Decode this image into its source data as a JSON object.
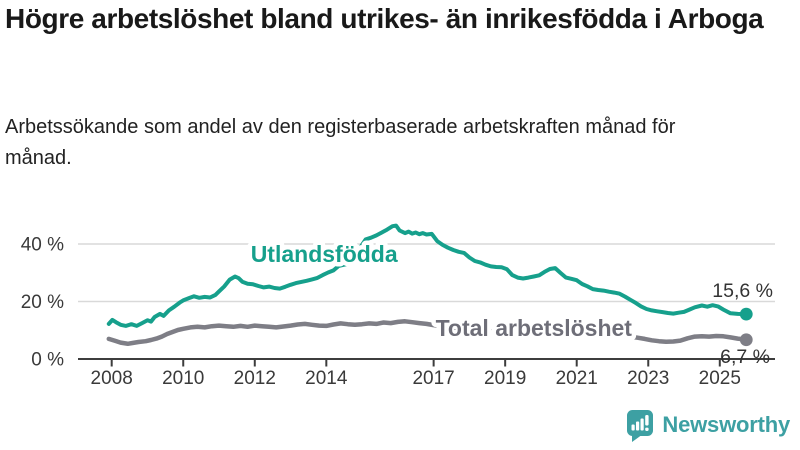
{
  "header": {
    "title": "Högre arbetslöshet bland utrikes- än inrikesfödda i Arboga",
    "subtitle": "Arbetssökande som andel av den registerbaserade arbetskraften månad för månad."
  },
  "footer": {
    "brand": "Newsworthy",
    "logo_icon": "bar-chart-speech-bubble-icon"
  },
  "colors": {
    "foreign_series": "#16a08c",
    "total_series": "#7e7e86",
    "total_label": "#6e6e78",
    "brand_teal": "#3da0a3",
    "axis_text": "#3a3a3a",
    "grid": "#d9d9d9",
    "axis_line": "#3d3d3d",
    "end_label_text": "#333333"
  },
  "chart_data": {
    "type": "line",
    "unit": "%",
    "grid": true,
    "legend_position": "inline-labels",
    "x_ticks": [
      2008,
      2010,
      2012,
      2014,
      2017,
      2019,
      2021,
      2023,
      2025
    ],
    "y_ticks": [
      {
        "value": 0,
        "label": "0 %"
      },
      {
        "value": 20,
        "label": "20 %"
      },
      {
        "value": 40,
        "label": "40 %"
      }
    ],
    "ylim": [
      0,
      48
    ],
    "xlim": [
      2007.9,
      2025.74
    ],
    "series": [
      {
        "name": "Utlandsfödda",
        "color": "#16a08c",
        "end_label": "15,6 %",
        "end_value": 15.6,
        "points": [
          [
            2007.92,
            12.2
          ],
          [
            2008.02,
            13.6
          ],
          [
            2008.12,
            12.8
          ],
          [
            2008.25,
            11.9
          ],
          [
            2008.4,
            11.5
          ],
          [
            2008.55,
            12.1
          ],
          [
            2008.7,
            11.5
          ],
          [
            2008.85,
            12.5
          ],
          [
            2009.0,
            13.5
          ],
          [
            2009.1,
            13.0
          ],
          [
            2009.2,
            14.6
          ],
          [
            2009.35,
            15.7
          ],
          [
            2009.45,
            15.0
          ],
          [
            2009.6,
            16.9
          ],
          [
            2009.75,
            18.2
          ],
          [
            2009.9,
            19.6
          ],
          [
            2010.0,
            20.4
          ],
          [
            2010.15,
            21.1
          ],
          [
            2010.3,
            21.8
          ],
          [
            2010.45,
            21.3
          ],
          [
            2010.6,
            21.6
          ],
          [
            2010.75,
            21.4
          ],
          [
            2010.9,
            22.3
          ],
          [
            2011.0,
            23.5
          ],
          [
            2011.15,
            25.3
          ],
          [
            2011.3,
            27.6
          ],
          [
            2011.45,
            28.7
          ],
          [
            2011.55,
            28.1
          ],
          [
            2011.65,
            26.9
          ],
          [
            2011.8,
            26.2
          ],
          [
            2011.95,
            26.0
          ],
          [
            2012.1,
            25.4
          ],
          [
            2012.25,
            24.9
          ],
          [
            2012.4,
            25.2
          ],
          [
            2012.55,
            24.7
          ],
          [
            2012.7,
            24.5
          ],
          [
            2012.85,
            25.1
          ],
          [
            2013.0,
            25.8
          ],
          [
            2013.15,
            26.4
          ],
          [
            2013.3,
            26.8
          ],
          [
            2013.45,
            27.2
          ],
          [
            2013.6,
            27.7
          ],
          [
            2013.75,
            28.2
          ],
          [
            2013.9,
            29.2
          ],
          [
            2014.05,
            30.1
          ],
          [
            2014.2,
            30.8
          ],
          [
            2014.35,
            32.4
          ],
          [
            2014.5,
            32.8
          ],
          [
            2014.65,
            33.3
          ],
          [
            2014.8,
            35.6
          ],
          [
            2014.95,
            38.8
          ],
          [
            2015.1,
            41.6
          ],
          [
            2015.25,
            42.2
          ],
          [
            2015.4,
            43.0
          ],
          [
            2015.55,
            44.0
          ],
          [
            2015.7,
            45.0
          ],
          [
            2015.85,
            46.2
          ],
          [
            2015.95,
            46.4
          ],
          [
            2016.05,
            44.7
          ],
          [
            2016.2,
            43.8
          ],
          [
            2016.3,
            44.3
          ],
          [
            2016.4,
            43.6
          ],
          [
            2016.5,
            44.0
          ],
          [
            2016.6,
            43.4
          ],
          [
            2016.7,
            43.8
          ],
          [
            2016.8,
            43.3
          ],
          [
            2016.95,
            43.5
          ],
          [
            2017.1,
            41.0
          ],
          [
            2017.25,
            39.7
          ],
          [
            2017.4,
            38.7
          ],
          [
            2017.55,
            37.9
          ],
          [
            2017.7,
            37.3
          ],
          [
            2017.85,
            36.9
          ],
          [
            2018.0,
            35.3
          ],
          [
            2018.15,
            34.1
          ],
          [
            2018.3,
            33.6
          ],
          [
            2018.45,
            32.8
          ],
          [
            2018.6,
            32.2
          ],
          [
            2018.75,
            32.0
          ],
          [
            2018.9,
            31.9
          ],
          [
            2019.05,
            31.2
          ],
          [
            2019.2,
            29.2
          ],
          [
            2019.35,
            28.3
          ],
          [
            2019.5,
            28.0
          ],
          [
            2019.65,
            28.3
          ],
          [
            2019.8,
            28.7
          ],
          [
            2019.95,
            29.1
          ],
          [
            2020.1,
            30.3
          ],
          [
            2020.25,
            31.3
          ],
          [
            2020.4,
            31.6
          ],
          [
            2020.55,
            29.9
          ],
          [
            2020.7,
            28.3
          ],
          [
            2020.85,
            27.9
          ],
          [
            2021.0,
            27.4
          ],
          [
            2021.15,
            26.1
          ],
          [
            2021.3,
            25.3
          ],
          [
            2021.45,
            24.3
          ],
          [
            2021.6,
            24.0
          ],
          [
            2021.75,
            23.8
          ],
          [
            2021.9,
            23.4
          ],
          [
            2022.05,
            23.1
          ],
          [
            2022.2,
            22.7
          ],
          [
            2022.35,
            21.7
          ],
          [
            2022.5,
            20.6
          ],
          [
            2022.65,
            19.5
          ],
          [
            2022.8,
            18.3
          ],
          [
            2022.95,
            17.4
          ],
          [
            2023.1,
            16.9
          ],
          [
            2023.25,
            16.6
          ],
          [
            2023.4,
            16.3
          ],
          [
            2023.55,
            16.0
          ],
          [
            2023.7,
            15.8
          ],
          [
            2023.85,
            16.1
          ],
          [
            2024.0,
            16.4
          ],
          [
            2024.15,
            17.2
          ],
          [
            2024.3,
            18.0
          ],
          [
            2024.5,
            18.6
          ],
          [
            2024.65,
            18.2
          ],
          [
            2024.8,
            18.7
          ],
          [
            2024.95,
            18.3
          ],
          [
            2025.1,
            17.2
          ],
          [
            2025.3,
            15.9
          ],
          [
            2025.5,
            15.7
          ],
          [
            2025.74,
            15.6
          ]
        ]
      },
      {
        "name": "Total arbetslöshet",
        "color": "#7e7e86",
        "label_color": "#6e6e78",
        "end_label": "6,7 %",
        "end_value": 6.7,
        "points": [
          [
            2007.92,
            7.0
          ],
          [
            2008.1,
            6.3
          ],
          [
            2008.25,
            5.7
          ],
          [
            2008.45,
            5.3
          ],
          [
            2008.6,
            5.6
          ],
          [
            2008.75,
            5.9
          ],
          [
            2008.95,
            6.2
          ],
          [
            2009.1,
            6.6
          ],
          [
            2009.25,
            7.1
          ],
          [
            2009.4,
            7.8
          ],
          [
            2009.55,
            8.7
          ],
          [
            2009.7,
            9.4
          ],
          [
            2009.85,
            10.1
          ],
          [
            2010.0,
            10.5
          ],
          [
            2010.2,
            11.0
          ],
          [
            2010.4,
            11.2
          ],
          [
            2010.6,
            11.0
          ],
          [
            2010.8,
            11.4
          ],
          [
            2011.0,
            11.6
          ],
          [
            2011.2,
            11.4
          ],
          [
            2011.4,
            11.2
          ],
          [
            2011.6,
            11.5
          ],
          [
            2011.8,
            11.2
          ],
          [
            2012.0,
            11.6
          ],
          [
            2012.2,
            11.4
          ],
          [
            2012.4,
            11.2
          ],
          [
            2012.6,
            11.0
          ],
          [
            2012.8,
            11.3
          ],
          [
            2013.0,
            11.6
          ],
          [
            2013.2,
            12.0
          ],
          [
            2013.4,
            12.2
          ],
          [
            2013.6,
            11.9
          ],
          [
            2013.8,
            11.6
          ],
          [
            2014.0,
            11.5
          ],
          [
            2014.2,
            12.0
          ],
          [
            2014.4,
            12.4
          ],
          [
            2014.6,
            12.1
          ],
          [
            2014.8,
            11.9
          ],
          [
            2015.0,
            12.1
          ],
          [
            2015.2,
            12.4
          ],
          [
            2015.4,
            12.2
          ],
          [
            2015.6,
            12.7
          ],
          [
            2015.8,
            12.5
          ],
          [
            2016.0,
            12.9
          ],
          [
            2016.2,
            13.1
          ],
          [
            2016.4,
            12.8
          ],
          [
            2016.6,
            12.5
          ],
          [
            2016.8,
            12.2
          ],
          [
            2017.0,
            11.8
          ],
          [
            2017.25,
            11.4
          ],
          [
            2017.5,
            11.0
          ],
          [
            2017.75,
            10.6
          ],
          [
            2018.0,
            10.3
          ],
          [
            2018.25,
            10.0
          ],
          [
            2018.5,
            9.8
          ],
          [
            2018.75,
            9.5
          ],
          [
            2019.0,
            9.3
          ],
          [
            2019.25,
            9.1
          ],
          [
            2019.5,
            9.0
          ],
          [
            2019.75,
            9.1
          ],
          [
            2020.0,
            9.4
          ],
          [
            2020.2,
            9.8
          ],
          [
            2020.4,
            10.0
          ],
          [
            2020.6,
            9.7
          ],
          [
            2020.8,
            9.4
          ],
          [
            2021.0,
            9.2
          ],
          [
            2021.25,
            8.9
          ],
          [
            2021.5,
            8.6
          ],
          [
            2021.75,
            8.3
          ],
          [
            2022.0,
            8.1
          ],
          [
            2022.25,
            7.9
          ],
          [
            2022.5,
            7.8
          ],
          [
            2022.7,
            7.4
          ],
          [
            2022.9,
            7.0
          ],
          [
            2023.1,
            6.5
          ],
          [
            2023.3,
            6.2
          ],
          [
            2023.5,
            6.0
          ],
          [
            2023.7,
            6.1
          ],
          [
            2023.9,
            6.4
          ],
          [
            2024.1,
            7.2
          ],
          [
            2024.3,
            7.8
          ],
          [
            2024.5,
            7.9
          ],
          [
            2024.7,
            7.8
          ],
          [
            2024.9,
            8.0
          ],
          [
            2025.1,
            7.9
          ],
          [
            2025.3,
            7.5
          ],
          [
            2025.5,
            7.1
          ],
          [
            2025.74,
            6.7
          ]
        ]
      }
    ],
    "series_labels": [
      {
        "series": 0,
        "x": 2013.94,
        "y": 33.7
      },
      {
        "series": 1,
        "x": 2019.8,
        "y": 8.0
      }
    ]
  }
}
